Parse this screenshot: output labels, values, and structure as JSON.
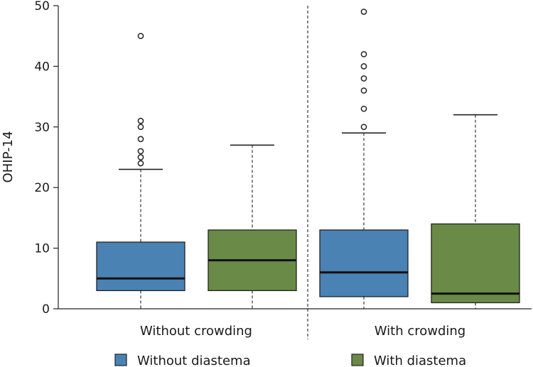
{
  "chart_data": {
    "type": "boxplot",
    "title": "",
    "xlabel": "",
    "ylabel": "OHIP-14",
    "ylim": [
      0,
      50
    ],
    "yticks": [
      0,
      10,
      20,
      30,
      40,
      50
    ],
    "groups": [
      "Without crowding",
      "With crowding"
    ],
    "series": [
      {
        "name": "Without diastema",
        "color": "#4a82b4",
        "boxes": [
          {
            "group": "Without crowding",
            "whisker_low": 0,
            "q1": 3,
            "median": 5,
            "q3": 11,
            "whisker_high": 23,
            "outliers": [
              24,
              25,
              26,
              28,
              30,
              31,
              45
            ]
          },
          {
            "group": "With crowding",
            "whisker_low": 0,
            "q1": 2,
            "median": 6,
            "q3": 13,
            "whisker_high": 29,
            "outliers": [
              30,
              33,
              36,
              38,
              40,
              42,
              49
            ]
          }
        ]
      },
      {
        "name": "With diastema",
        "color": "#6a8a47",
        "boxes": [
          {
            "group": "Without crowding",
            "whisker_low": 0,
            "q1": 3,
            "median": 8,
            "q3": 13,
            "whisker_high": 27,
            "outliers": []
          },
          {
            "group": "With crowding",
            "whisker_low": 0,
            "q1": 1,
            "median": 2.5,
            "q3": 14,
            "whisker_high": 32,
            "outliers": []
          }
        ]
      }
    ],
    "legend": [
      "Without diastema",
      "With diastema"
    ],
    "legend_position": "bottom"
  }
}
